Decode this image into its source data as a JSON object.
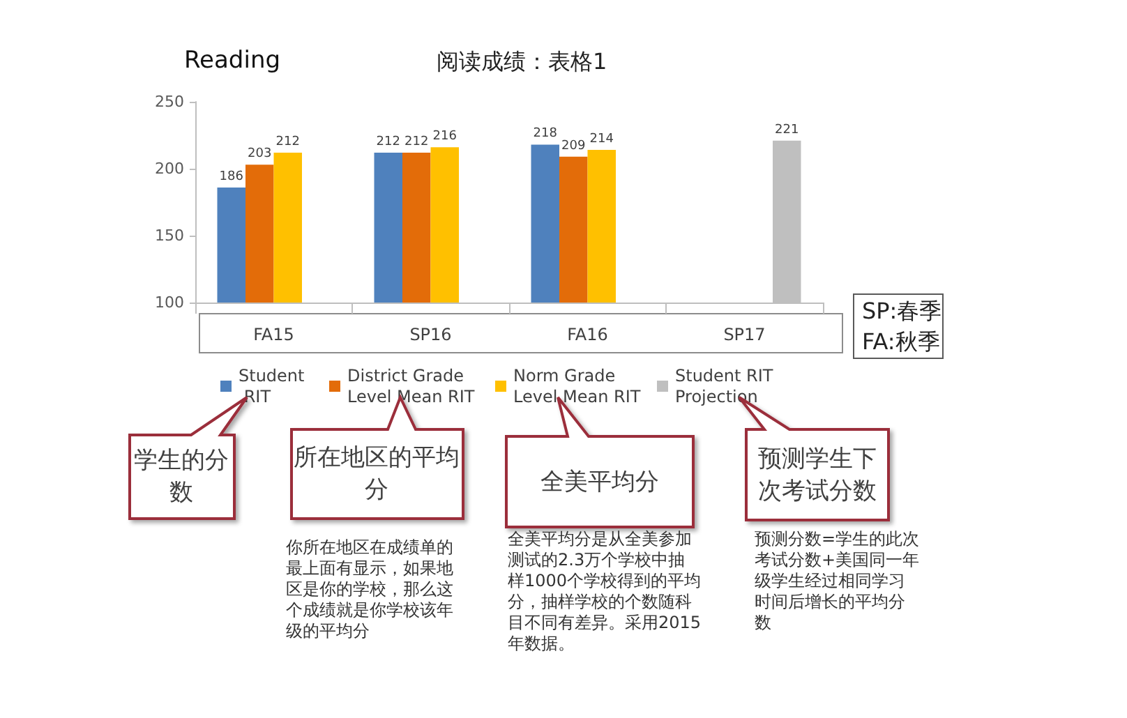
{
  "chart_data": {
    "type": "bar",
    "title": "阅读成绩：表格1",
    "subtitle": "Reading",
    "categories": [
      "FA15",
      "SP16",
      "FA16",
      "SP17"
    ],
    "series": [
      {
        "name": "Student RIT",
        "color": "#4f81bd",
        "values": [
          186,
          212,
          218,
          null
        ]
      },
      {
        "name": "District Grade Level Mean RIT",
        "color": "#e36c09",
        "values": [
          203,
          212,
          209,
          null
        ]
      },
      {
        "name": "Norm Grade Level Mean RIT",
        "color": "#ffc000",
        "values": [
          212,
          216,
          214,
          null
        ]
      },
      {
        "name": "Student RIT Projection",
        "color": "#bfbfbf",
        "values": [
          null,
          null,
          null,
          221
        ]
      }
    ],
    "ylim": [
      100,
      250
    ],
    "yticks": [
      100,
      150,
      200,
      250
    ],
    "data_labels": true,
    "legend": "bottom",
    "annotations": [
      "SP:春季",
      "FA:秋季",
      "学生的分数",
      "所在地区的平均分",
      "全美平均分",
      "预测学生下次考试分数",
      "你所在地区在成绩单的最上面有显示，如果地区是你的学校，那么这个成绩就是你学校该年级的平均分",
      "全美平均分是从全美参加测试的2.3万个学校中抽样1000个学校得到的平均分，抽样学校的个数随科目不同有差异。采用2015年数据。",
      "预测分数=学生的此次考试分数+美国同一年级学生经过相同学习时间后增长的平均分数"
    ]
  }
}
